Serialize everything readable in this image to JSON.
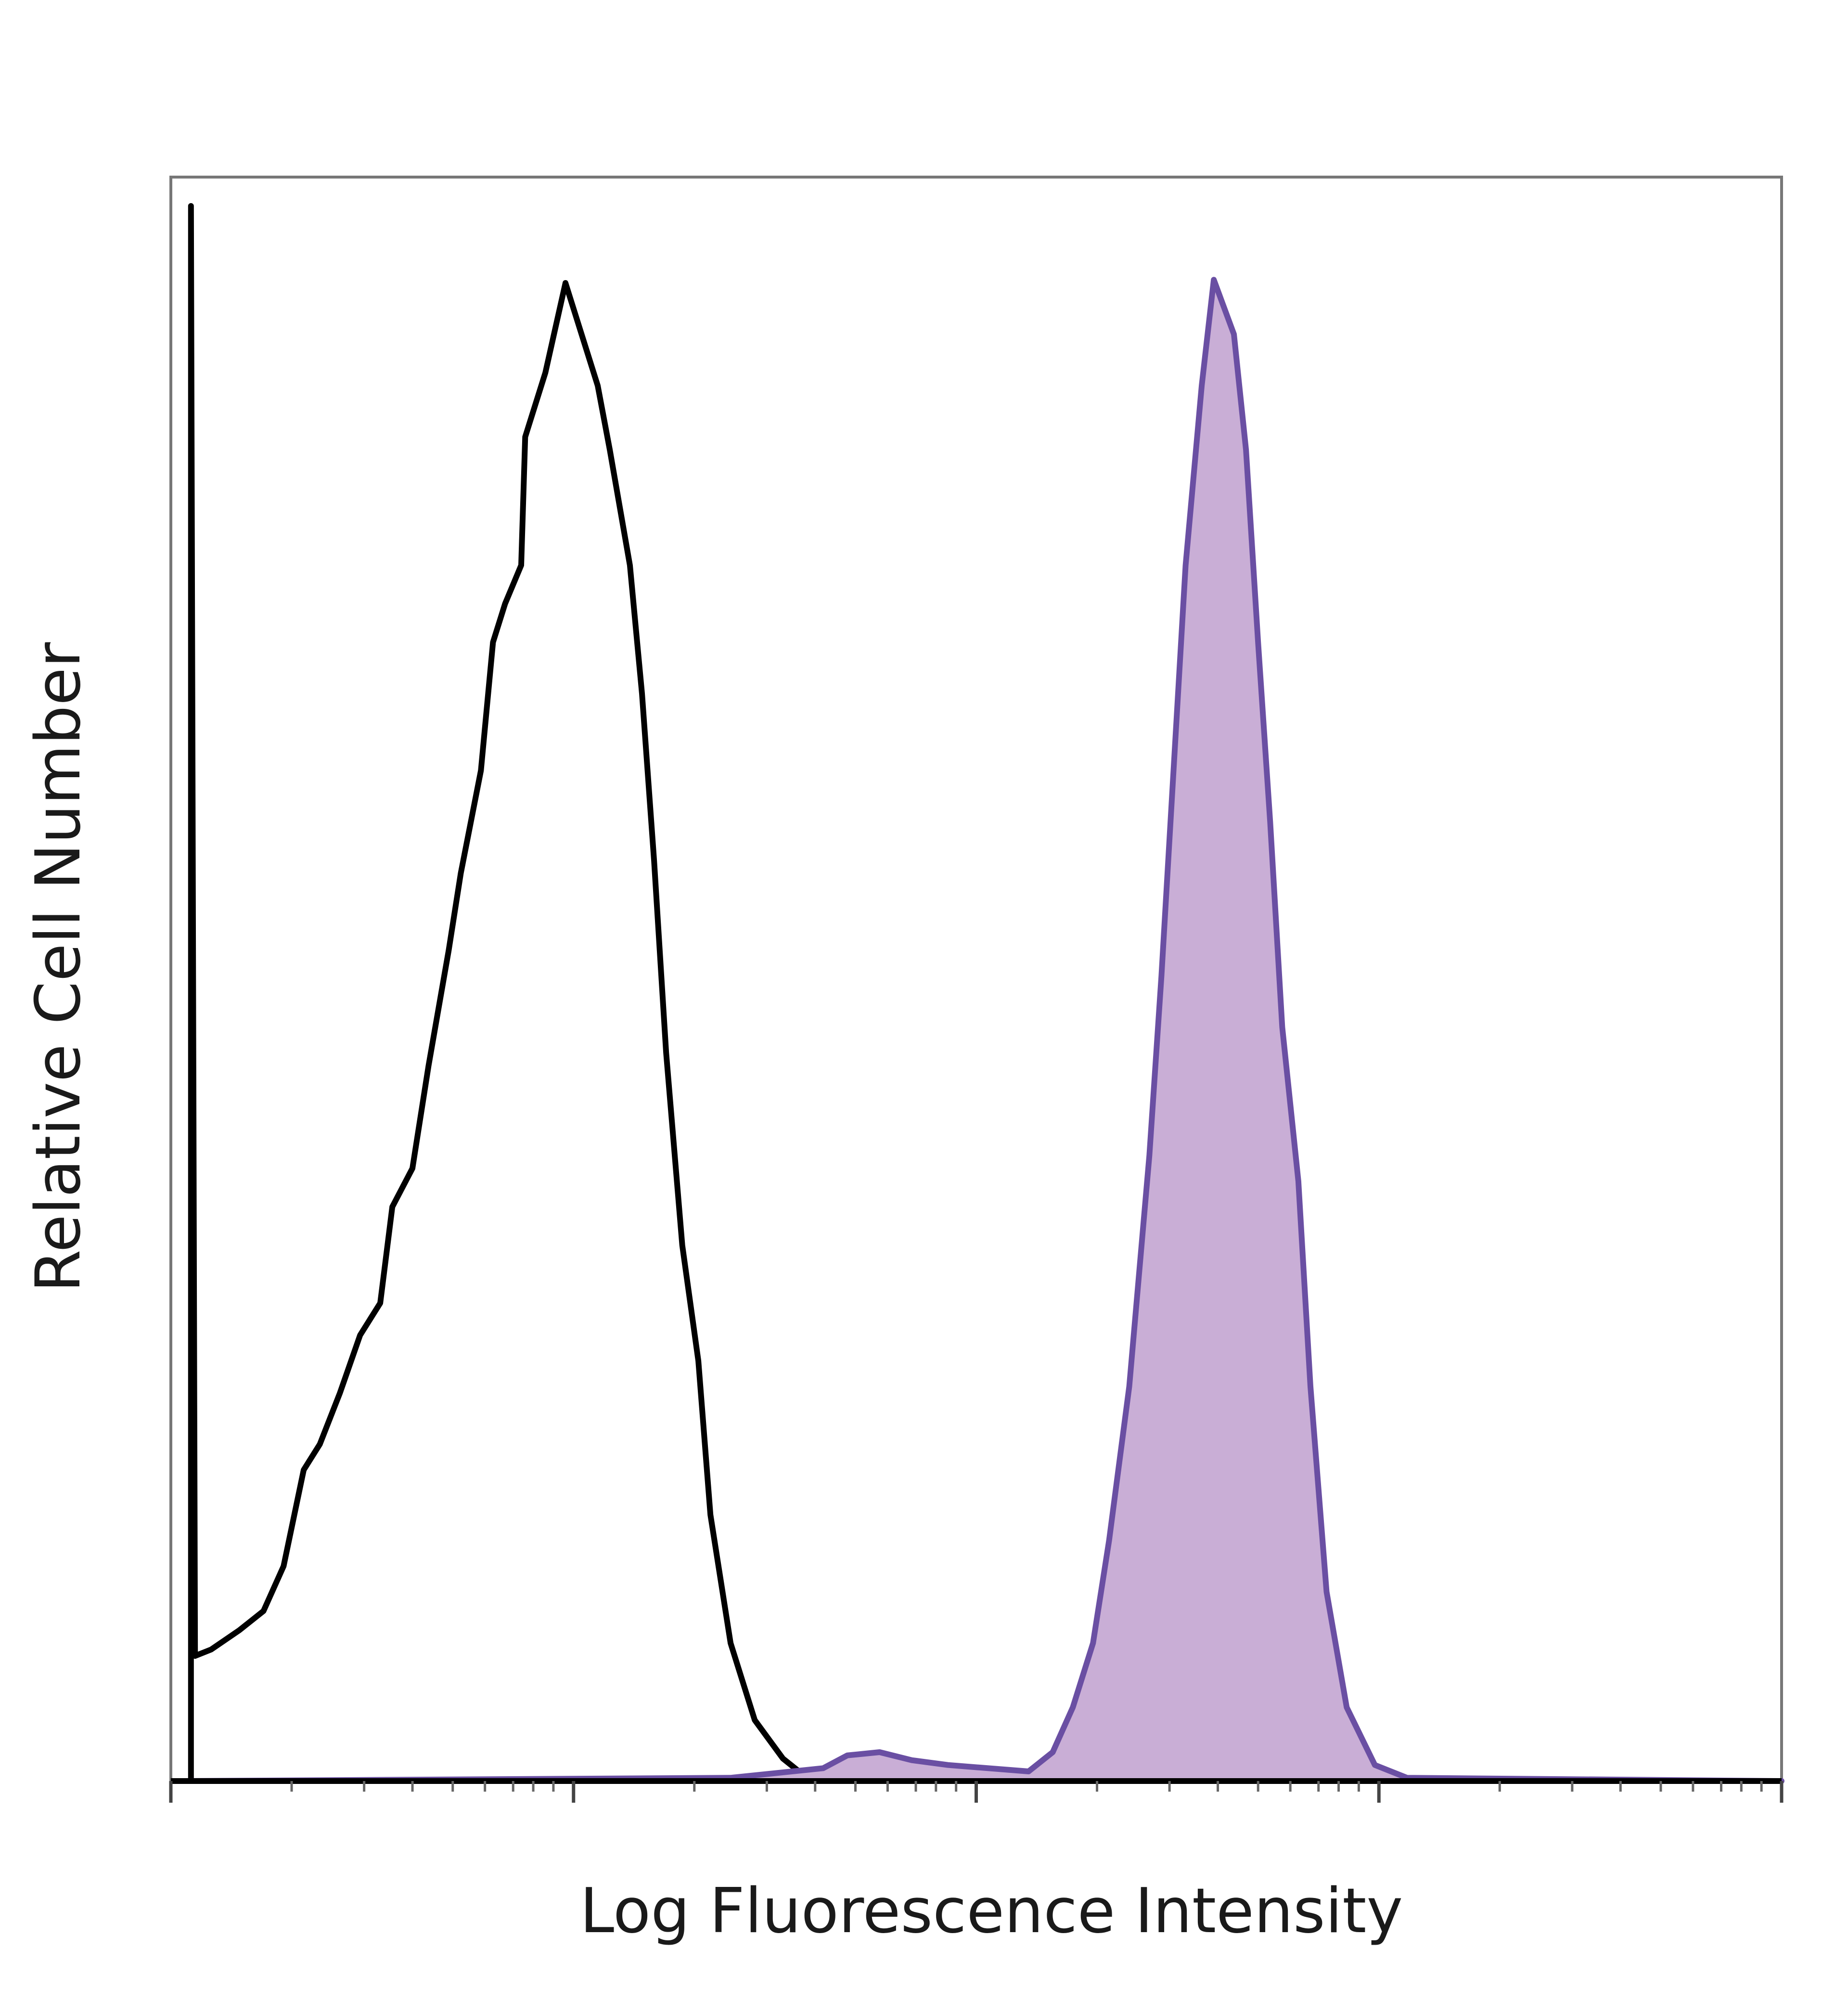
{
  "chart_data": {
    "type": "histogram-overlay",
    "x_label": "Log Fluorescence Intensity",
    "y_label": "Relative Cell Number",
    "xlim": [
      0,
      4
    ],
    "ylim": [
      0,
      100
    ],
    "xticks": [
      0,
      1,
      2,
      3,
      4
    ],
    "minor_xticks": [
      0.3,
      0.48,
      0.6,
      0.7,
      0.78,
      0.85,
      0.9,
      0.95,
      1.3,
      1.48,
      1.6,
      1.7,
      1.78,
      1.85,
      1.9,
      1.95,
      2.3,
      2.48,
      2.6,
      2.7,
      2.78,
      2.85,
      2.9,
      2.95,
      3.3,
      3.48,
      3.6,
      3.7,
      3.78,
      3.85,
      3.9,
      3.95
    ],
    "series": [
      {
        "color": "#000000",
        "filled": false,
        "x": [
          0.05,
          0.05,
          0.06,
          0.1,
          0.17,
          0.23,
          0.28,
          0.33,
          0.37,
          0.42,
          0.47,
          0.52,
          0.55,
          0.6,
          0.64,
          0.69,
          0.72,
          0.77,
          0.8,
          0.83,
          0.87,
          0.88,
          0.93,
          0.98,
          1.01,
          1.06,
          1.09,
          1.14,
          1.17,
          1.2,
          1.23,
          1.27,
          1.31,
          1.34,
          1.39,
          1.45,
          1.52,
          1.58,
          1.81,
          4.0
        ],
        "values": [
          0,
          98.2,
          7.8,
          8.2,
          9.4,
          10.6,
          13.4,
          19.4,
          21.0,
          24.2,
          27.8,
          29.8,
          35.8,
          38.2,
          44.6,
          51.8,
          56.6,
          63.0,
          71.0,
          73.4,
          75.8,
          83.8,
          87.8,
          93.4,
          91.0,
          87.0,
          83.0,
          75.8,
          67.8,
          57.4,
          45.4,
          33.4,
          26.2,
          16.6,
          8.6,
          3.8,
          1.4,
          0.2,
          0,
          0
        ]
      },
      {
        "color": "#6a4fa3",
        "fill": "#c9aed6",
        "filled": true,
        "x": [
          0.02,
          1.39,
          1.62,
          1.68,
          1.76,
          1.84,
          1.93,
          2.13,
          2.19,
          2.24,
          2.29,
          2.33,
          2.38,
          2.43,
          2.46,
          2.49,
          2.52,
          2.56,
          2.59,
          2.64,
          2.67,
          2.7,
          2.73,
          2.76,
          2.8,
          2.83,
          2.87,
          2.92,
          2.99,
          3.07,
          4.0
        ],
        "values": [
          0,
          0.2,
          0.8,
          1.6,
          1.8,
          1.3,
          1.0,
          0.6,
          1.8,
          4.6,
          8.6,
          15.0,
          24.6,
          39.0,
          50.2,
          63.0,
          75.8,
          87.0,
          93.6,
          90.2,
          83.0,
          71.0,
          59.8,
          47.0,
          37.4,
          24.6,
          11.8,
          4.6,
          1.0,
          0.2,
          0
        ]
      }
    ]
  }
}
